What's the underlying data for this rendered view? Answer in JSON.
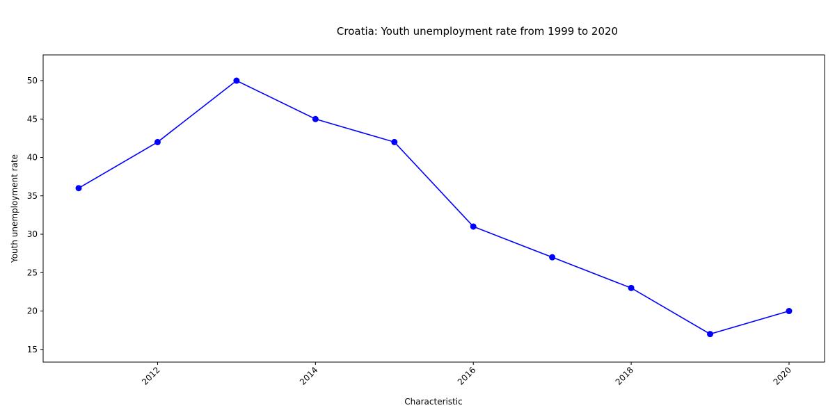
{
  "chart_data": {
    "type": "line",
    "title": "Croatia: Youth unemployment rate from 1999 to 2020",
    "xlabel": "Characteristic",
    "ylabel": "Youth unemployment rate",
    "x": [
      2011,
      2012,
      2013,
      2014,
      2015,
      2016,
      2017,
      2018,
      2019,
      2020
    ],
    "series": [
      {
        "values": [
          36,
          42,
          50,
          45,
          42,
          31,
          27,
          23,
          17,
          20
        ],
        "color": "#0000ff",
        "marker": "circle"
      }
    ],
    "xlim": [
      2010.55,
      2020.45
    ],
    "ylim": [
      13.35,
      53.35
    ],
    "x_ticks": [
      "2012",
      "2014",
      "2016",
      "2018",
      "2020"
    ],
    "x_tick_values": [
      2012,
      2014,
      2016,
      2018,
      2020
    ],
    "y_ticks": [
      "15",
      "20",
      "25",
      "30",
      "35",
      "40",
      "45",
      "50"
    ],
    "y_tick_values": [
      15,
      20,
      25,
      30,
      35,
      40,
      45,
      50
    ],
    "grid": false,
    "legend": "none"
  }
}
